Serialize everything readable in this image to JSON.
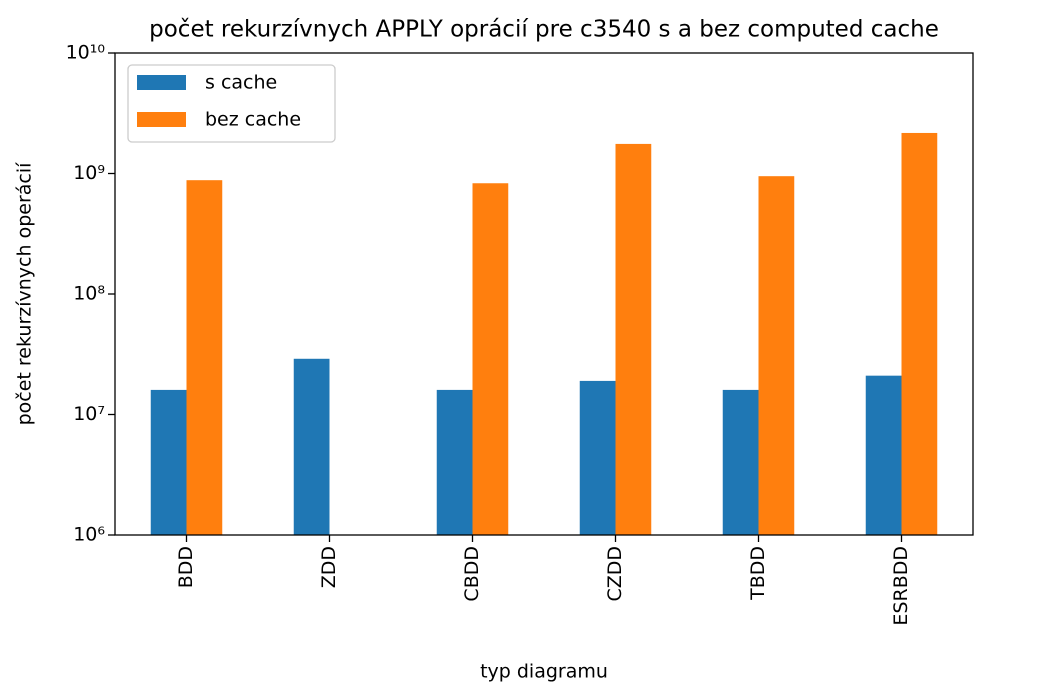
{
  "chart_data": {
    "type": "bar",
    "title": "počet rekurzívnych APPLY oprácií pre c3540 s a bez computed cache",
    "xlabel": "typ diagramu",
    "ylabel": "počet rekurzívnych operácií",
    "categories": [
      "BDD",
      "ZDD",
      "CBDD",
      "CZDD",
      "TBDD",
      "ESRBDD"
    ],
    "series": [
      {
        "name": "s cache",
        "color": "#1f77b4",
        "values": [
          16000000,
          29000000,
          16000000,
          19000000,
          16000000,
          21000000
        ]
      },
      {
        "name": "bez cache",
        "color": "#ff7f0e",
        "values": [
          880000000,
          null,
          830000000,
          1760000000,
          950000000,
          2170000000
        ]
      }
    ],
    "ylim": [
      1000000,
      10000000000
    ],
    "yticks": [
      {
        "value": 1000000,
        "label": "10⁶"
      },
      {
        "value": 10000000,
        "label": "10⁷"
      },
      {
        "value": 100000000,
        "label": "10⁸"
      },
      {
        "value": 1000000000,
        "label": "10⁹"
      },
      {
        "value": 10000000000,
        "label": "10¹⁰"
      }
    ],
    "log_y": true,
    "grid": false,
    "legend": "upper left"
  }
}
